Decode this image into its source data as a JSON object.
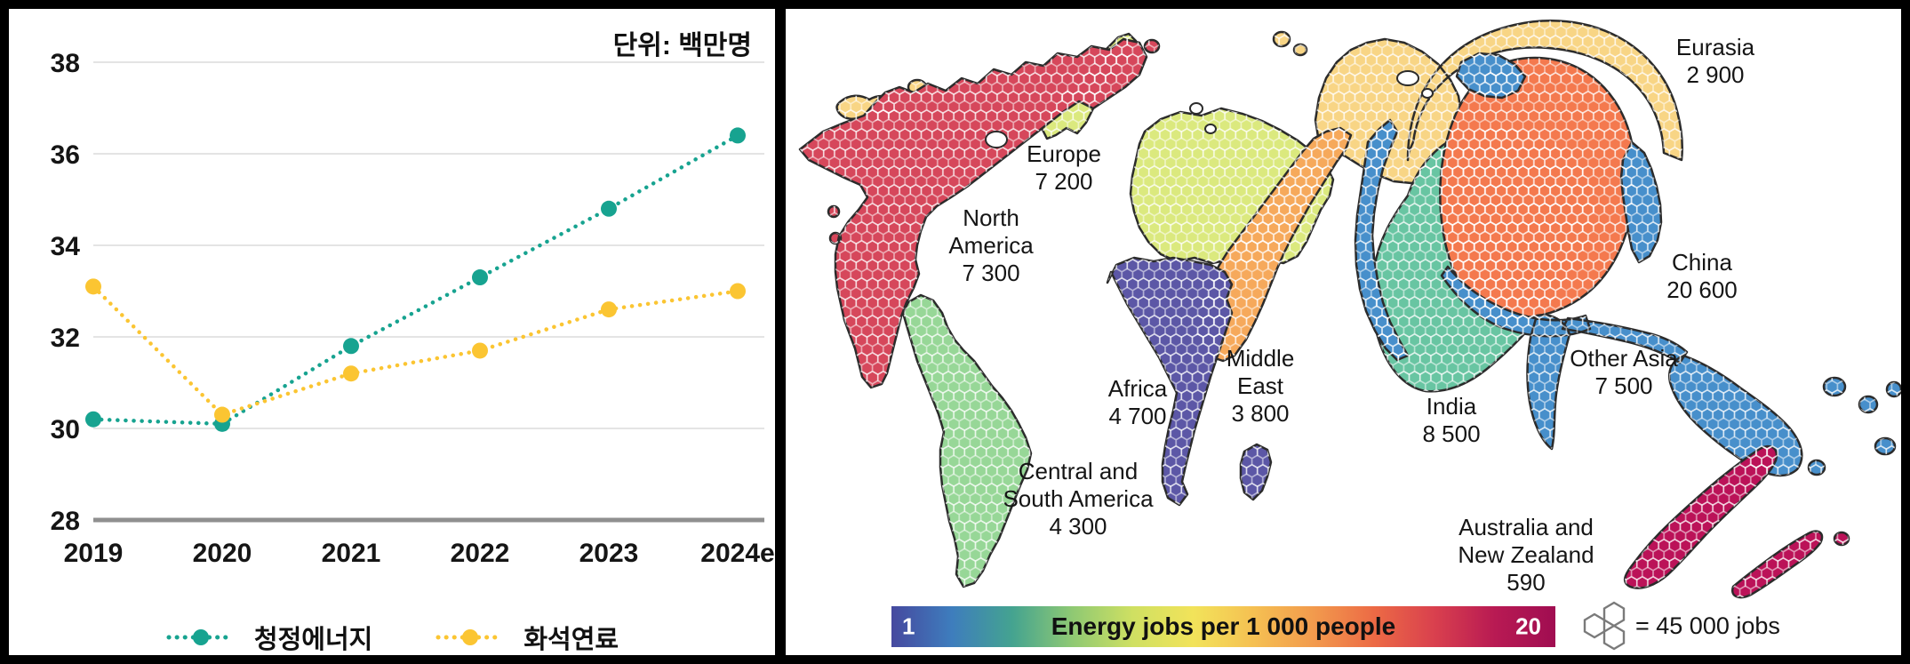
{
  "chart_data": {
    "type": "line",
    "title": "단위: 백만명",
    "categories": [
      "2019",
      "2020",
      "2021",
      "2022",
      "2023",
      "2024e"
    ],
    "series": [
      {
        "name": "청정에너지",
        "color": "#17a390",
        "values": [
          30.2,
          30.1,
          31.8,
          33.3,
          34.8,
          36.4
        ]
      },
      {
        "name": "화석연료",
        "color": "#fbc532",
        "values": [
          33.1,
          30.3,
          31.2,
          31.7,
          32.6,
          33.0
        ]
      }
    ],
    "ylim": [
      28,
      38
    ],
    "yticks": [
      28,
      30,
      32,
      34,
      36,
      38
    ],
    "grid": "horizontal",
    "legend_position": "bottom",
    "line_style": "dotted"
  },
  "map": {
    "colorbar": {
      "title": "Energy jobs per 1 000 people",
      "min": "1",
      "max": "20",
      "gradient": [
        "#46499f",
        "#3e7dbd",
        "#44a390",
        "#8fc973",
        "#cfe062",
        "#f2e35a",
        "#f5c052",
        "#f29a4d",
        "#ec6a45",
        "#d9404e",
        "#b81a53",
        "#a00d51"
      ]
    },
    "hex_legend_text": "= 45 000 jobs",
    "regions": [
      {
        "name": "North\nAmerica",
        "value": "7 300",
        "color": "#d6475b"
      },
      {
        "name": "Central and\nSouth America",
        "value": "4 300",
        "color": "#97d797"
      },
      {
        "name": "Europe",
        "value": "7 200",
        "color": "#dbe97e"
      },
      {
        "name": "Africa",
        "value": "4 700",
        "color": "#5c57a6"
      },
      {
        "name": "Middle\nEast",
        "value": "3 800",
        "color": "#f6a95b"
      },
      {
        "name": "Eurasia",
        "value": "2 900",
        "color": "#f8d585"
      },
      {
        "name": "India",
        "value": "8 500",
        "color": "#68c5a2"
      },
      {
        "name": "China",
        "value": "20 600",
        "color": "#f4794e"
      },
      {
        "name": "Other Asia",
        "value": "7 500",
        "color": "#478fcb"
      },
      {
        "name": "Australia and\nNew Zealand",
        "value": "590",
        "color": "#bb1258"
      }
    ]
  }
}
